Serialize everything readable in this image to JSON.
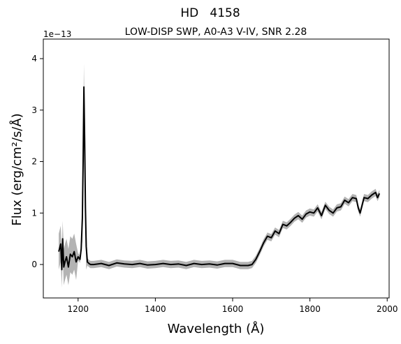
{
  "chart_data": {
    "type": "line",
    "title": "HD   4158",
    "subtitle": "LOW-DISP SWP, A0-A3 V-IV, SNR 2.28",
    "xlabel": "Wavelength (Å)",
    "ylabel": "Flux (erg/cm²/s/Å)",
    "offset_label": "1e−13",
    "xlim": [
      1110,
      2005
    ],
    "ylim": [
      -0.65,
      4.38
    ],
    "x_ticks": [
      1200,
      1400,
      1600,
      1800,
      2000
    ],
    "y_ticks": [
      0,
      1,
      2,
      3,
      4
    ],
    "y_scale_factor": "1e-13",
    "grid": false,
    "legend": "none",
    "series": [
      {
        "color": "#000000",
        "x": [
          1150,
          1155,
          1158,
          1160,
          1163,
          1166,
          1170,
          1175,
          1180,
          1185,
          1190,
          1195,
          1200,
          1205,
          1208,
          1211,
          1213,
          1215,
          1217,
          1219,
          1221,
          1224,
          1228,
          1232,
          1240,
          1260,
          1280,
          1300,
          1320,
          1340,
          1360,
          1380,
          1400,
          1420,
          1440,
          1460,
          1480,
          1500,
          1520,
          1540,
          1560,
          1580,
          1600,
          1620,
          1640,
          1650,
          1660,
          1670,
          1680,
          1690,
          1700,
          1710,
          1720,
          1730,
          1740,
          1750,
          1760,
          1770,
          1780,
          1790,
          1800,
          1810,
          1820,
          1830,
          1840,
          1850,
          1860,
          1870,
          1880,
          1890,
          1900,
          1910,
          1920,
          1925,
          1930,
          1935,
          1940,
          1950,
          1960,
          1970,
          1975,
          1980
        ],
        "y": [
          0.25,
          0.4,
          -0.1,
          0.5,
          -0.05,
          0.05,
          0.15,
          -0.05,
          0.2,
          0.15,
          0.25,
          0.05,
          0.15,
          0.1,
          0.3,
          0.9,
          2.0,
          3.45,
          2.4,
          1.1,
          0.35,
          0.05,
          0.02,
          0.0,
          0.0,
          0.02,
          -0.02,
          0.03,
          0.01,
          0.0,
          0.02,
          -0.01,
          0.0,
          0.02,
          0.0,
          0.01,
          -0.02,
          0.02,
          0.0,
          0.01,
          -0.01,
          0.02,
          0.02,
          -0.02,
          -0.02,
          0.0,
          0.1,
          0.25,
          0.42,
          0.55,
          0.52,
          0.65,
          0.6,
          0.78,
          0.75,
          0.82,
          0.9,
          0.95,
          0.88,
          0.98,
          1.02,
          1.0,
          1.1,
          0.95,
          1.15,
          1.05,
          1.0,
          1.1,
          1.12,
          1.25,
          1.2,
          1.3,
          1.28,
          1.1,
          1.0,
          1.15,
          1.3,
          1.28,
          1.35,
          1.4,
          1.3,
          1.38
        ]
      }
    ]
  }
}
